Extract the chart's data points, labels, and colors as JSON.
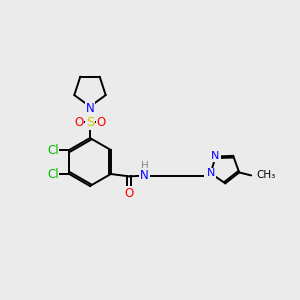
{
  "background_color": "#ebebeb",
  "bond_color": "#000000",
  "atom_colors": {
    "N": "#0000ff",
    "O": "#ff0000",
    "S": "#cccc00",
    "Cl": "#00bb00",
    "H": "#888888",
    "C": "#000000"
  },
  "font_size": 8.5,
  "figsize": [
    3.0,
    3.0
  ],
  "dpi": 100,
  "xlim": [
    0,
    10
  ],
  "ylim": [
    0,
    10
  ]
}
